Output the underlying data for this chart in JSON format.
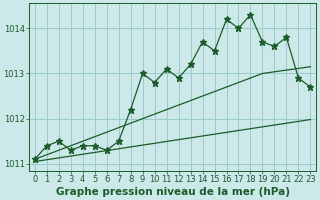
{
  "title": "Graphe pression niveau de la mer (hPa)",
  "background_color": "#cce8e8",
  "grid_color": "#99cccc",
  "line_color": "#1a5c2a",
  "hours": [
    0,
    1,
    2,
    3,
    4,
    5,
    6,
    7,
    8,
    9,
    10,
    11,
    12,
    13,
    14,
    15,
    16,
    17,
    18,
    19,
    20,
    21,
    22,
    23
  ],
  "pressure": [
    1011.1,
    1011.4,
    1011.5,
    1011.3,
    1011.4,
    1011.4,
    1011.3,
    1011.5,
    1012.2,
    1013.0,
    1012.8,
    1013.1,
    1012.9,
    1013.2,
    1013.7,
    1013.5,
    1014.2,
    1014.0,
    1014.3,
    1013.7,
    1013.6,
    1013.8,
    1012.9,
    1012.7
  ],
  "upper_env": [
    1011.1,
    1011.1,
    1011.1,
    1011.15,
    1011.2,
    1011.25,
    1011.4,
    1011.55,
    1012.05,
    1012.5,
    1012.55,
    1012.65,
    1012.75,
    1012.85,
    1012.95,
    1013.0,
    1013.0,
    1013.0,
    1013.0,
    1013.0,
    1013.0,
    1013.1,
    1013.15,
    1013.15
  ],
  "lower_env": [
    1011.05,
    1011.08,
    1011.1,
    1011.13,
    1011.15,
    1011.18,
    1011.2,
    1011.25,
    1011.32,
    1011.4,
    1011.48,
    1011.55,
    1011.62,
    1011.7,
    1011.77,
    1011.83,
    1011.88,
    1011.92,
    1011.95,
    1011.97,
    1011.98,
    1011.99,
    1011.99,
    1011.98
  ],
  "ylim": [
    1010.85,
    1014.55
  ],
  "yticks": [
    1011,
    1012,
    1013,
    1014
  ],
  "xticks": [
    0,
    1,
    2,
    3,
    4,
    5,
    6,
    7,
    8,
    9,
    10,
    11,
    12,
    13,
    14,
    15,
    16,
    17,
    18,
    19,
    20,
    21,
    22,
    23
  ],
  "title_fontsize": 7.5,
  "tick_fontsize": 6.0
}
